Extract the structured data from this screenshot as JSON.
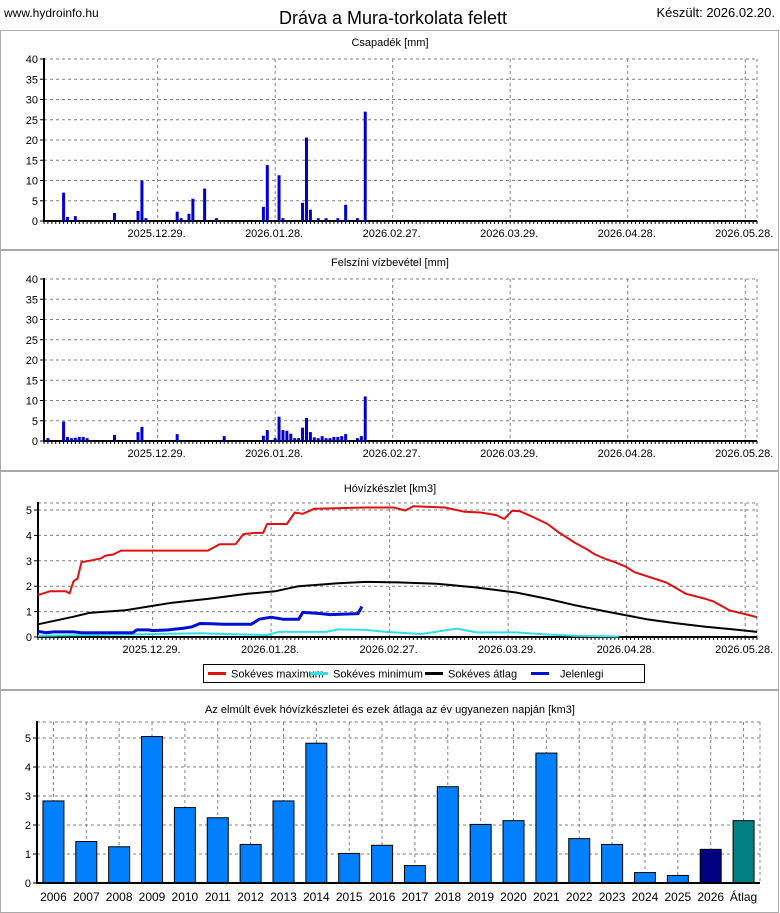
{
  "header": {
    "site": "www.hydroinfo.hu",
    "title": "Dráva a Mura-torkolata felett",
    "created": "Készült: 2026.02.20."
  },
  "x_axis": {
    "origin_date": "2025-12-29",
    "unit": "days since origin_date",
    "range": [
      -29,
      153
    ],
    "tick_days": [
      0,
      30,
      60,
      90,
      120,
      150
    ],
    "tick_labels": [
      "2025.12.29.",
      "2026.01.28.",
      "2026.02.27.",
      "2026.03.29.",
      "2026.04.28.",
      "2026.05.28."
    ]
  },
  "chart_data": [
    {
      "type": "bar",
      "title": "Csapadék [mm]",
      "ylabel": "mm",
      "ylim": [
        0,
        40
      ],
      "yticks": [
        0,
        5,
        10,
        15,
        20,
        25,
        30,
        35,
        40
      ],
      "color": "#0000d0",
      "x": [
        -24,
        -23,
        -21,
        -11,
        -5,
        -4,
        -3,
        5,
        6,
        8,
        9,
        12,
        15,
        27,
        28,
        31,
        32,
        37,
        38,
        39,
        41,
        43,
        46,
        48,
        51,
        53
      ],
      "values": [
        7,
        1,
        1.2,
        2,
        2.5,
        10,
        0.7,
        2.3,
        0.7,
        1.8,
        5.5,
        8,
        0.7,
        3.5,
        13.8,
        11.3,
        0.7,
        4.5,
        20.6,
        2.8,
        0.7,
        0.7,
        0.7,
        4,
        0.7,
        27
      ]
    },
    {
      "type": "bar",
      "title": "Felszíni vízbevétel [mm]",
      "ylabel": "mm",
      "ylim": [
        0,
        40
      ],
      "yticks": [
        0,
        5,
        10,
        15,
        20,
        25,
        30,
        35,
        40
      ],
      "color": "#0000d0",
      "x": [
        -28,
        -24,
        -23,
        -22,
        -21,
        -20,
        -19,
        -18,
        -11,
        -5,
        -4,
        5,
        17,
        27,
        28,
        30,
        31,
        32,
        33,
        34,
        35,
        36,
        37,
        38,
        39,
        40,
        41,
        42,
        43,
        44,
        45,
        46,
        47,
        48,
        51,
        52,
        53
      ],
      "values": [
        0.7,
        4.8,
        1,
        0.7,
        0.8,
        1,
        1,
        0.7,
        1.5,
        2.2,
        3.5,
        1.7,
        1.2,
        1.3,
        2.7,
        0.7,
        6,
        2.7,
        2.5,
        1.8,
        0.7,
        0.7,
        3.3,
        5.7,
        2.2,
        0.9,
        0.7,
        1.2,
        0.7,
        0.7,
        1,
        1,
        1.2,
        1.7,
        0.7,
        1.2,
        11
      ]
    },
    {
      "type": "line",
      "title": "Hóvízkészlet [km3]",
      "ylabel": "km3",
      "ylim": [
        0,
        5.3
      ],
      "yticks": [
        0,
        1,
        2,
        3,
        4,
        5
      ],
      "legend_position": "bottom",
      "series": [
        {
          "name": "Sokéves maximum",
          "color": "#e01010",
          "x": [
            -29,
            -26,
            -22,
            -21,
            -20,
            -19,
            -18,
            -16,
            -13,
            -12,
            -10,
            -8,
            14,
            17,
            21,
            23,
            26,
            28,
            29,
            34,
            36,
            38,
            41,
            54,
            61,
            64,
            66,
            74,
            79,
            83,
            87,
            89,
            91,
            93,
            96,
            100,
            103,
            107,
            110,
            112,
            115,
            117,
            120,
            122,
            125,
            130,
            135,
            140,
            142,
            146,
            150,
            153
          ],
          "y": [
            1.65,
            1.8,
            1.8,
            1.72,
            2.2,
            2.3,
            2.95,
            3.0,
            3.1,
            3.2,
            3.25,
            3.4,
            3.4,
            3.65,
            3.65,
            4.05,
            4.1,
            4.1,
            4.45,
            4.45,
            4.9,
            4.85,
            5.05,
            5.1,
            5.1,
            4.98,
            5.15,
            5.1,
            4.93,
            4.9,
            4.8,
            4.65,
            4.97,
            4.95,
            4.75,
            4.45,
            4.1,
            3.7,
            3.45,
            3.25,
            3.05,
            2.95,
            2.75,
            2.55,
            2.4,
            2.15,
            1.7,
            1.5,
            1.4,
            1.05,
            0.9,
            0.78
          ]
        },
        {
          "name": "Sokéves minimum",
          "color": "#30e0e8",
          "x": [
            -29,
            -20,
            -7,
            12,
            18,
            29,
            32,
            44,
            47,
            54,
            59,
            68,
            77,
            82,
            92,
            100,
            107,
            118
          ],
          "y": [
            0.05,
            0.07,
            0.1,
            0.15,
            0.12,
            0.08,
            0.2,
            0.2,
            0.3,
            0.28,
            0.2,
            0.12,
            0.33,
            0.18,
            0.18,
            0.1,
            0.05,
            0.02
          ]
        },
        {
          "name": "Sokéves átlag",
          "color": "#000000",
          "x": [
            -29,
            -20,
            -16,
            -7,
            -1,
            5,
            14,
            24,
            31,
            34,
            37,
            47,
            54,
            62,
            72,
            82,
            92,
            100,
            107,
            115,
            120,
            125,
            132,
            140,
            147,
            153
          ],
          "y": [
            0.5,
            0.8,
            0.95,
            1.05,
            1.2,
            1.35,
            1.5,
            1.7,
            1.8,
            1.9,
            2.0,
            2.12,
            2.17,
            2.15,
            2.1,
            1.95,
            1.75,
            1.5,
            1.25,
            1.0,
            0.85,
            0.7,
            0.55,
            0.4,
            0.3,
            0.2
          ]
        },
        {
          "name": "Jelenlegi",
          "color": "#0010d0",
          "x": [
            -29,
            -27,
            -25,
            -20,
            -18,
            -5,
            -4,
            -1,
            0,
            4,
            8,
            10,
            12,
            15,
            18,
            25,
            27,
            30,
            33,
            37,
            38,
            42,
            45,
            52,
            53
          ],
          "y": [
            0.22,
            0.17,
            0.2,
            0.2,
            0.17,
            0.17,
            0.28,
            0.28,
            0.25,
            0.28,
            0.35,
            0.4,
            0.53,
            0.52,
            0.5,
            0.5,
            0.7,
            0.78,
            0.7,
            0.7,
            0.97,
            0.93,
            0.88,
            0.92,
            1.2
          ]
        }
      ]
    },
    {
      "type": "bar",
      "title": "Az elmúlt évek hóvízkészletei és ezek átlaga az év ugyanezen napján [km3]",
      "ylabel": "km3",
      "ylim": [
        0,
        5.5
      ],
      "yticks": [
        0,
        1,
        2,
        3,
        4,
        5
      ],
      "categories": [
        "2006",
        "2007",
        "2008",
        "2009",
        "2010",
        "2011",
        "2012",
        "2013",
        "2014",
        "2015",
        "2016",
        "2017",
        "2018",
        "2019",
        "2020",
        "2021",
        "2022",
        "2023",
        "2024",
        "2025",
        "2026",
        "Átlag"
      ],
      "values": [
        2.83,
        1.43,
        1.25,
        5.05,
        2.6,
        2.25,
        1.33,
        2.83,
        4.82,
        1.02,
        1.3,
        0.6,
        3.32,
        2.02,
        2.15,
        4.48,
        1.53,
        1.33,
        0.36,
        0.26,
        1.16,
        2.15
      ],
      "colors": {
        "past": "#0080ff",
        "current": "#000080",
        "average": "#008080"
      }
    }
  ]
}
